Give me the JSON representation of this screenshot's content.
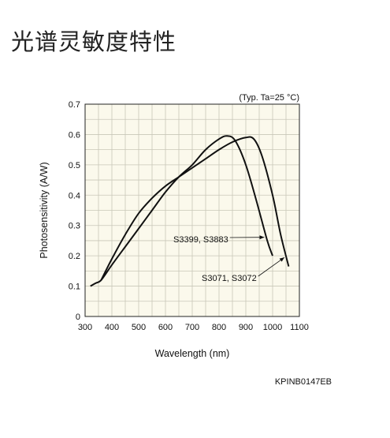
{
  "page_title": "光谱灵敏度特性",
  "chart_data": {
    "type": "line",
    "title": "",
    "xlabel": "Wavelength (nm)",
    "ylabel": "Photosensitivity (A/W)",
    "xlim": [
      300,
      1100
    ],
    "ylim": [
      0,
      0.7
    ],
    "x_ticks": [
      300,
      400,
      500,
      600,
      700,
      800,
      900,
      1000,
      1100
    ],
    "y_ticks": [
      0,
      0.1,
      0.2,
      0.3,
      0.4,
      0.5,
      0.6,
      0.7
    ],
    "grid": true,
    "condition_note": "(Typ. Ta=25 °C)",
    "series": [
      {
        "name": "S3399, S3883",
        "x": [
          320,
          340,
          360,
          400,
          450,
          500,
          550,
          600,
          650,
          700,
          750,
          800,
          830,
          860,
          900,
          940,
          980,
          1000
        ],
        "y": [
          0.1,
          0.11,
          0.12,
          0.17,
          0.23,
          0.29,
          0.35,
          0.41,
          0.46,
          0.5,
          0.55,
          0.585,
          0.595,
          0.58,
          0.5,
          0.38,
          0.25,
          0.2
        ]
      },
      {
        "name": "S3071, S3072",
        "x": [
          360,
          400,
          450,
          500,
          550,
          600,
          650,
          700,
          750,
          800,
          850,
          900,
          930,
          960,
          1000,
          1030,
          1060
        ],
        "y": [
          0.12,
          0.19,
          0.27,
          0.34,
          0.39,
          0.43,
          0.46,
          0.49,
          0.52,
          0.55,
          0.575,
          0.59,
          0.585,
          0.53,
          0.4,
          0.27,
          0.165
        ]
      }
    ],
    "annotations": [
      {
        "text": "S3399, S3883",
        "series_index": 0,
        "point_x": 975
      },
      {
        "text": "S3071, S3072",
        "series_index": 1,
        "point_x": 1050
      }
    ]
  },
  "figure_code": "KPINB0147EB"
}
